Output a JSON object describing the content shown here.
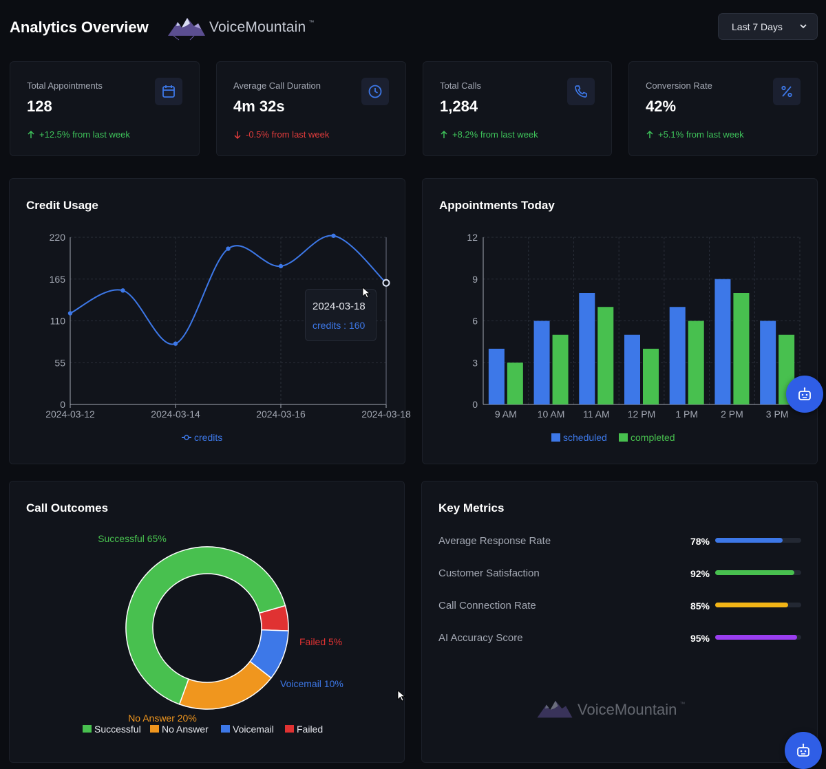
{
  "header": {
    "title": "Analytics Overview",
    "brand_name": "VoiceMountain",
    "brand_tm": "™",
    "range_value": "Last 7 Days"
  },
  "stats": [
    {
      "label": "Total Appointments",
      "value": "128",
      "change": "+12.5% from last week",
      "direction": "up",
      "icon": "calendar-icon"
    },
    {
      "label": "Average Call Duration",
      "value": "4m 32s",
      "change": "-0.5% from last week",
      "direction": "down",
      "icon": "clock-icon"
    },
    {
      "label": "Total Calls",
      "value": "1,284",
      "change": "+8.2% from last week",
      "direction": "up",
      "icon": "phone-icon"
    },
    {
      "label": "Conversion Rate",
      "value": "42%",
      "change": "+5.1% from last week",
      "direction": "up",
      "icon": "percent-icon"
    }
  ],
  "colors": {
    "blue": "#3d78e8",
    "green": "#48c04f",
    "orange": "#f0961e",
    "red": "#e03232",
    "purple": "#9a3ef0",
    "yellow": "#f2b416"
  },
  "credit_usage": {
    "title": "Credit Usage",
    "tooltip_date": "2024-03-18",
    "tooltip_value": "credits : 160"
  },
  "appointments_today": {
    "title": "Appointments Today"
  },
  "call_outcomes": {
    "title": "Call Outcomes"
  },
  "key_metrics": {
    "title": "Key Metrics",
    "items": [
      {
        "label": "Average Response Rate",
        "pct": "78%",
        "value": 0.78,
        "color": "#3d78e8"
      },
      {
        "label": "Customer Satisfaction",
        "pct": "92%",
        "value": 0.92,
        "color": "#48c04f"
      },
      {
        "label": "Call Connection Rate",
        "pct": "85%",
        "value": 0.85,
        "color": "#f2b416"
      },
      {
        "label": "AI Accuracy Score",
        "pct": "95%",
        "value": 0.95,
        "color": "#9a3ef0"
      }
    ],
    "watermark": "VoiceMountain",
    "watermark_tm": "™"
  },
  "chart_data": [
    {
      "type": "line",
      "title": "Credit Usage",
      "x": [
        "2024-03-12",
        "2024-03-13",
        "2024-03-14",
        "2024-03-15",
        "2024-03-16",
        "2024-03-17",
        "2024-03-18"
      ],
      "x_tick_labels": [
        "2024-03-12",
        "2024-03-14",
        "2024-03-16",
        "2024-03-18"
      ],
      "series": [
        {
          "name": "credits",
          "values": [
            120,
            150,
            80,
            205,
            182,
            222,
            160
          ]
        }
      ],
      "yticks": [
        "0",
        "55",
        "110",
        "165",
        "220"
      ],
      "ylim": [
        0,
        220
      ],
      "legend": "credits"
    },
    {
      "type": "bar",
      "title": "Appointments Today",
      "categories": [
        "9 AM",
        "10 AM",
        "11 AM",
        "12 PM",
        "1 PM",
        "2 PM",
        "3 PM"
      ],
      "series": [
        {
          "name": "scheduled",
          "values": [
            4,
            6,
            8,
            5,
            7,
            9,
            6
          ]
        },
        {
          "name": "completed",
          "values": [
            3,
            5,
            7,
            4,
            6,
            8,
            5
          ]
        }
      ],
      "yticks": [
        "0",
        "3",
        "6",
        "9",
        "12"
      ],
      "ylim": [
        0,
        12
      ]
    },
    {
      "type": "pie",
      "title": "Call Outcomes",
      "slices": [
        {
          "name": "Successful",
          "value": 65,
          "label": "Successful 65%"
        },
        {
          "name": "No Answer",
          "value": 20,
          "label": "No Answer 20%"
        },
        {
          "name": "Voicemail",
          "value": 10,
          "label": "Voicemail 10%"
        },
        {
          "name": "Failed",
          "value": 5,
          "label": "Failed 5%"
        }
      ]
    }
  ]
}
